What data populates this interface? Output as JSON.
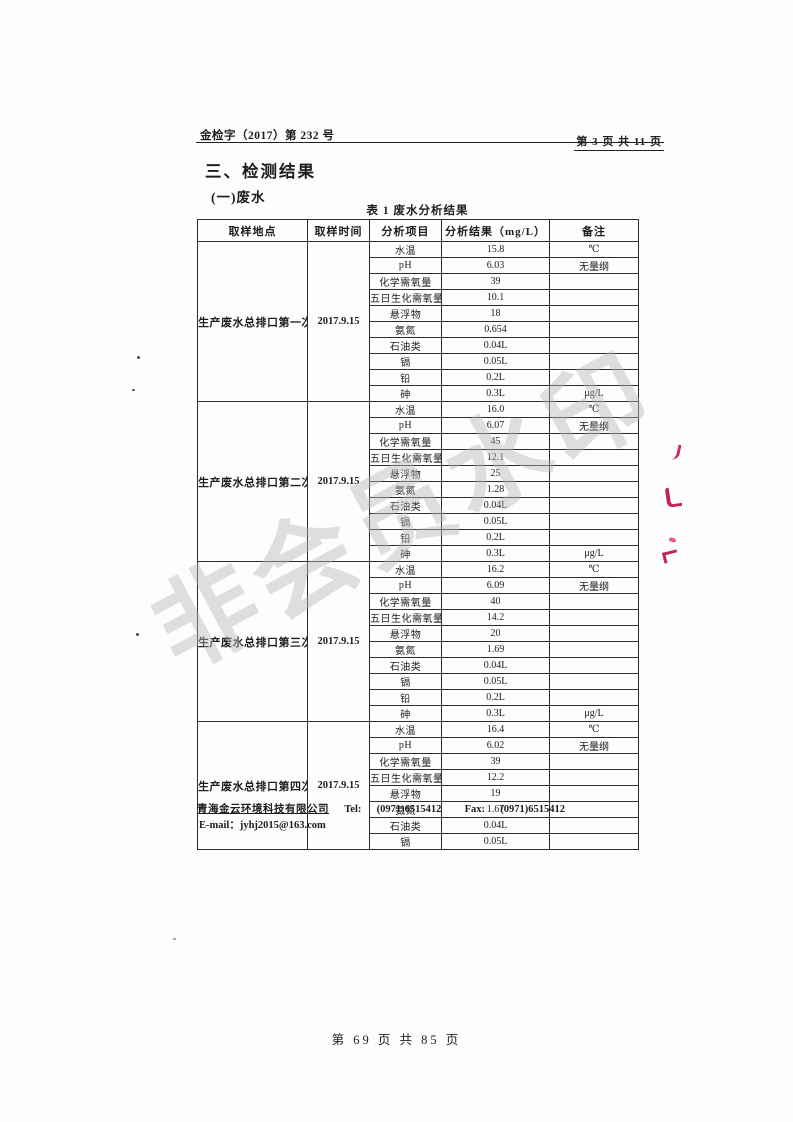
{
  "header": {
    "doc_number": "金检字（2017）第 232 号",
    "page_indicator": "第 3 页 共 11 页"
  },
  "titles": {
    "section": "三、检测结果",
    "subsection": "(一)废水",
    "table_caption": "表 1 废水分析结果"
  },
  "table": {
    "headers": [
      "取样地点",
      "取样时间",
      "分析项目",
      "分析结果（mg/L）",
      "备注"
    ],
    "groups": [
      {
        "location": "生产废水总排口第一次",
        "time": "2017.9.15",
        "rows": [
          {
            "param": "水温",
            "value": "15.8",
            "remark": "℃"
          },
          {
            "param": "pH",
            "value": "6.03",
            "remark": "无量纲"
          },
          {
            "param": "化学需氧量",
            "value": "39",
            "remark": ""
          },
          {
            "param": "五日生化需氧量",
            "value": "10.1",
            "remark": ""
          },
          {
            "param": "悬浮物",
            "value": "18",
            "remark": ""
          },
          {
            "param": "氨氮",
            "value": "0.654",
            "remark": ""
          },
          {
            "param": "石油类",
            "value": "0.04L",
            "remark": ""
          },
          {
            "param": "镉",
            "value": "0.05L",
            "remark": ""
          },
          {
            "param": "铅",
            "value": "0.2L",
            "remark": ""
          },
          {
            "param": "砷",
            "value": "0.3L",
            "remark": "μg/L"
          }
        ]
      },
      {
        "location": "生产废水总排口第二次",
        "time": "2017.9.15",
        "rows": [
          {
            "param": "水温",
            "value": "16.0",
            "remark": "℃"
          },
          {
            "param": "pH",
            "value": "6.07",
            "remark": "无量纲"
          },
          {
            "param": "化学需氧量",
            "value": "45",
            "remark": ""
          },
          {
            "param": "五日生化需氧量",
            "value": "12.1",
            "remark": ""
          },
          {
            "param": "悬浮物",
            "value": "25",
            "remark": ""
          },
          {
            "param": "氨氮",
            "value": "1.28",
            "remark": ""
          },
          {
            "param": "石油类",
            "value": "0.04L",
            "remark": ""
          },
          {
            "param": "镉",
            "value": "0.05L",
            "remark": ""
          },
          {
            "param": "铅",
            "value": "0.2L",
            "remark": ""
          },
          {
            "param": "砷",
            "value": "0.3L",
            "remark": "μg/L"
          }
        ]
      },
      {
        "location": "生产废水总排口第三次",
        "time": "2017.9.15",
        "rows": [
          {
            "param": "水温",
            "value": "16.2",
            "remark": "℃"
          },
          {
            "param": "pH",
            "value": "6.09",
            "remark": "无量纲"
          },
          {
            "param": "化学需氧量",
            "value": "40",
            "remark": ""
          },
          {
            "param": "五日生化需氧量",
            "value": "14.2",
            "remark": ""
          },
          {
            "param": "悬浮物",
            "value": "20",
            "remark": ""
          },
          {
            "param": "氨氮",
            "value": "1.69",
            "remark": ""
          },
          {
            "param": "石油类",
            "value": "0.04L",
            "remark": ""
          },
          {
            "param": "镉",
            "value": "0.05L",
            "remark": ""
          },
          {
            "param": "铅",
            "value": "0.2L",
            "remark": ""
          },
          {
            "param": "砷",
            "value": "0.3L",
            "remark": "μg/L"
          }
        ]
      },
      {
        "location": "生产废水总排口第四次",
        "time": "2017.9.15",
        "rows": [
          {
            "param": "水温",
            "value": "16.4",
            "remark": "℃"
          },
          {
            "param": "pH",
            "value": "6.02",
            "remark": "无量纲"
          },
          {
            "param": "化学需氧量",
            "value": "39",
            "remark": ""
          },
          {
            "param": "五日生化需氧量",
            "value": "12.2",
            "remark": ""
          },
          {
            "param": "悬浮物",
            "value": "19",
            "remark": ""
          },
          {
            "param": "氨氮",
            "value": "1.67",
            "remark": ""
          },
          {
            "param": "石油类",
            "value": "0.04L",
            "remark": ""
          },
          {
            "param": "镉",
            "value": "0.05L",
            "remark": ""
          }
        ]
      }
    ]
  },
  "footer": {
    "company": "青海金云环境科技有限公司",
    "tel_label": "Tel:",
    "tel": "(0971)6515412",
    "fax_label": "Fax:",
    "fax": "(0971)6515412",
    "email_label": "E-mail：",
    "email": "jyhj2015@163.com",
    "page_number": "第 69 页 共 85 页"
  },
  "watermark": "非会员水印",
  "colors": {
    "red_artifact": "#c2255c",
    "watermark_gray": "#b9b9b9",
    "table_border": "#2b2b2b"
  }
}
